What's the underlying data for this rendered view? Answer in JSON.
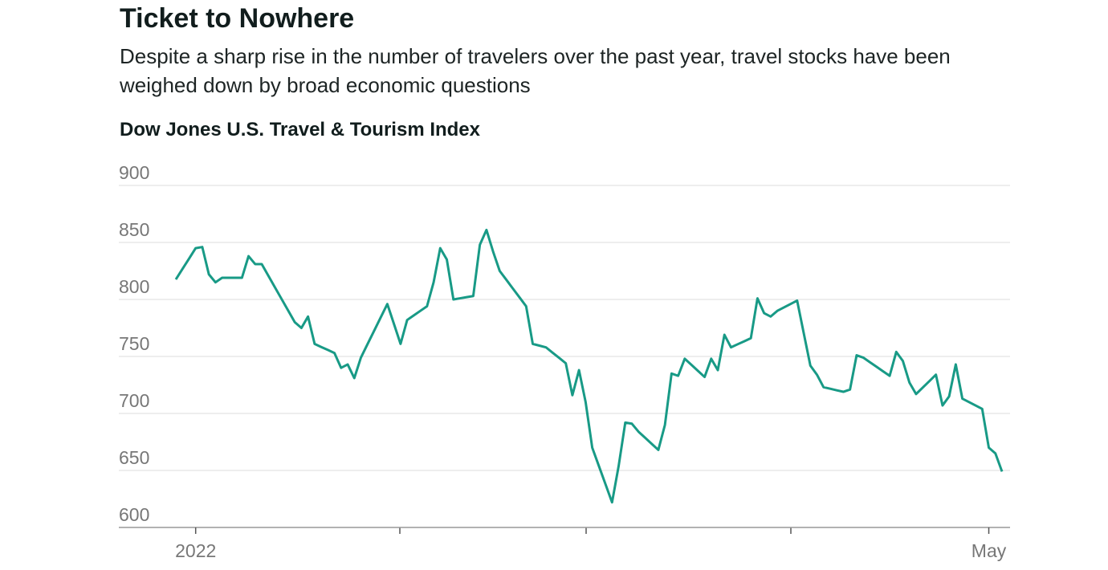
{
  "chart_data": {
    "type": "line",
    "title": "Ticket to Nowhere",
    "subtitle": "Despite a sharp rise in the number of travelers over the past year, travel stocks have been weighed down by broad economic questions",
    "chart_title": "Dow Jones U.S. Travel & Tourism Index",
    "categories": [
      null,
      null,
      null,
      "2022",
      null,
      null,
      null,
      null,
      null,
      null,
      null,
      null,
      null,
      null,
      null,
      null,
      null,
      null,
      null,
      null,
      null,
      null,
      null,
      null,
      null,
      null,
      null,
      null,
      null,
      null,
      null,
      null,
      null,
      null,
      null,
      null,
      null,
      null,
      null,
      null,
      null,
      null,
      null,
      null,
      null,
      null,
      null,
      null,
      null,
      null,
      null,
      null,
      null,
      null,
      null,
      null,
      null,
      null,
      null,
      null,
      null,
      null,
      null,
      null,
      null,
      null,
      null,
      null,
      null,
      null,
      null,
      null,
      null,
      null,
      null,
      null,
      null,
      null,
      null,
      null,
      null,
      null,
      null,
      null,
      null,
      null,
      null,
      null,
      null,
      null,
      null,
      null,
      null,
      null,
      null,
      null,
      null,
      null,
      null,
      null,
      null,
      null,
      null,
      null,
      null,
      null,
      null,
      null,
      null,
      null,
      null,
      null,
      null,
      null,
      null,
      null,
      null,
      null,
      null,
      null,
      null,
      null,
      null,
      "May",
      null,
      null
    ],
    "values": [
      817.6,
      826.7,
      835.8,
      845,
      846,
      822,
      815,
      819,
      819,
      819,
      819,
      838,
      831,
      831,
      820.8,
      810.6,
      800.4,
      790.2,
      780,
      775,
      785,
      761,
      758.3,
      755.7,
      753,
      740,
      743,
      731,
      749,
      760.8,
      772.5,
      784.3,
      796,
      778.5,
      761,
      782,
      786,
      790,
      794,
      815,
      845,
      835,
      800,
      801,
      802,
      803,
      848,
      861,
      842,
      825,
      817.3,
      809.5,
      801.8,
      794,
      761,
      759.5,
      758,
      753.3,
      748.7,
      744,
      716,
      738,
      710,
      670,
      654,
      638,
      622,
      654,
      692,
      691,
      684,
      678.7,
      673.3,
      668,
      690,
      735,
      733,
      748,
      742.7,
      737.3,
      732,
      748,
      738,
      769,
      758,
      760.7,
      763.3,
      766,
      801,
      788,
      785,
      790,
      793,
      796,
      799,
      770.5,
      742,
      734,
      723,
      721.7,
      720.3,
      719,
      721,
      751,
      749,
      745,
      741,
      737,
      733,
      754,
      746,
      727,
      717,
      722.7,
      728.3,
      734,
      707,
      715,
      743,
      713,
      710,
      707,
      704,
      670,
      665,
      649
    ],
    "color": "#189a86",
    "ylim": [
      600,
      900
    ],
    "yticks": [
      600,
      650,
      700,
      750,
      800,
      850,
      900
    ],
    "grid": true
  }
}
